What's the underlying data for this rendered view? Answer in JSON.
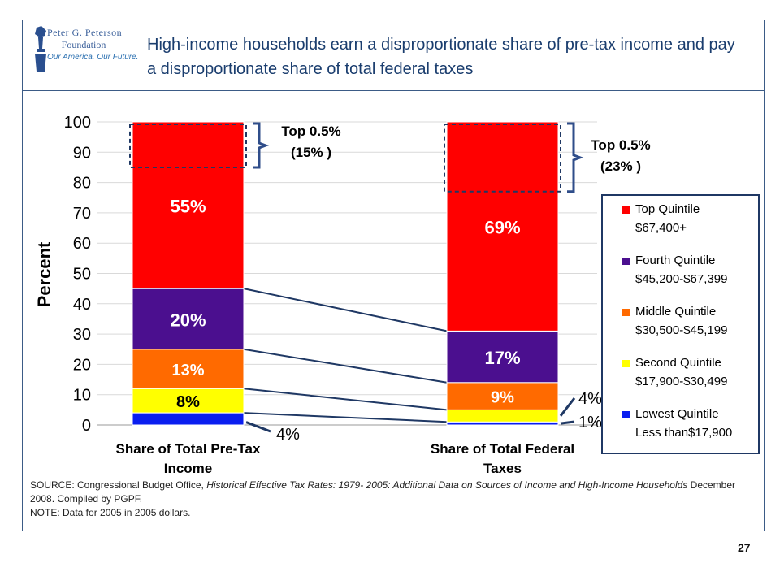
{
  "slide": {
    "title": "High-income households earn a disproportionate share of pre-tax income and pay a disproportionate share of total federal taxes",
    "page_number": "27",
    "logo": {
      "line1": "Peter G. Peterson",
      "line2": "Foundation",
      "tagline": "Our America. Our Future."
    },
    "source": {
      "prefix": "SOURCE: Congressional Budget Office, ",
      "italic": "Historical Effective Tax Rates: 1979- 2005: Additional Data on Sources of Income and High-Income Households",
      "suffix": " December 2008. Compiled by PGPF.",
      "note": "NOTE: Data for 2005 in 2005 dollars."
    }
  },
  "chart_data": {
    "type": "bar",
    "stacked": true,
    "categories": [
      "Share of Total Pre-Tax Income",
      "Share of Total Federal Taxes"
    ],
    "category_label_lines": [
      [
        "Share of Total Pre-Tax",
        "Income"
      ],
      [
        "Share of Total Federal",
        "Taxes"
      ]
    ],
    "ylabel": "Percent",
    "ylim": [
      0,
      100
    ],
    "yticks": [
      0,
      10,
      20,
      30,
      40,
      50,
      60,
      70,
      80,
      90,
      100
    ],
    "grid": true,
    "legend_position": "right",
    "series": [
      {
        "name": "Lowest Quintile",
        "legend_lines": [
          "Lowest Quintile",
          "Less than$17,900"
        ],
        "color": "#0a1ef0",
        "values": [
          4,
          1
        ],
        "labels": [
          "4%",
          "1%"
        ]
      },
      {
        "name": "Second Quintile",
        "legend_lines": [
          "Second Quintile",
          "$17,900-$30,499"
        ],
        "color": "#ffff00",
        "values": [
          8,
          4
        ],
        "labels": [
          "8%",
          "4%"
        ]
      },
      {
        "name": "Middle Quintile",
        "legend_lines": [
          "Middle Quintile",
          "$30,500-$45,199"
        ],
        "color": "#ff6a00",
        "values": [
          13,
          9
        ],
        "labels": [
          "13%",
          "9%"
        ]
      },
      {
        "name": "Fourth Quintile",
        "legend_lines": [
          "Fourth Quintile",
          "$45,200-$67,399"
        ],
        "color": "#4b0f8f",
        "values": [
          20,
          17
        ],
        "labels": [
          "20%",
          "17%"
        ]
      },
      {
        "name": "Top Quintile",
        "legend_lines": [
          "Top Quintile",
          "$67,400+"
        ],
        "color": "#ff0000",
        "values": [
          55,
          69
        ],
        "labels": [
          "55%",
          "69%"
        ]
      }
    ],
    "annotations": [
      {
        "bar": 0,
        "title": "Top 0.5%",
        "value": "(15% )",
        "share": 15
      },
      {
        "bar": 1,
        "title": "Top 0.5%",
        "value": "(23% )",
        "share": 23
      }
    ]
  }
}
